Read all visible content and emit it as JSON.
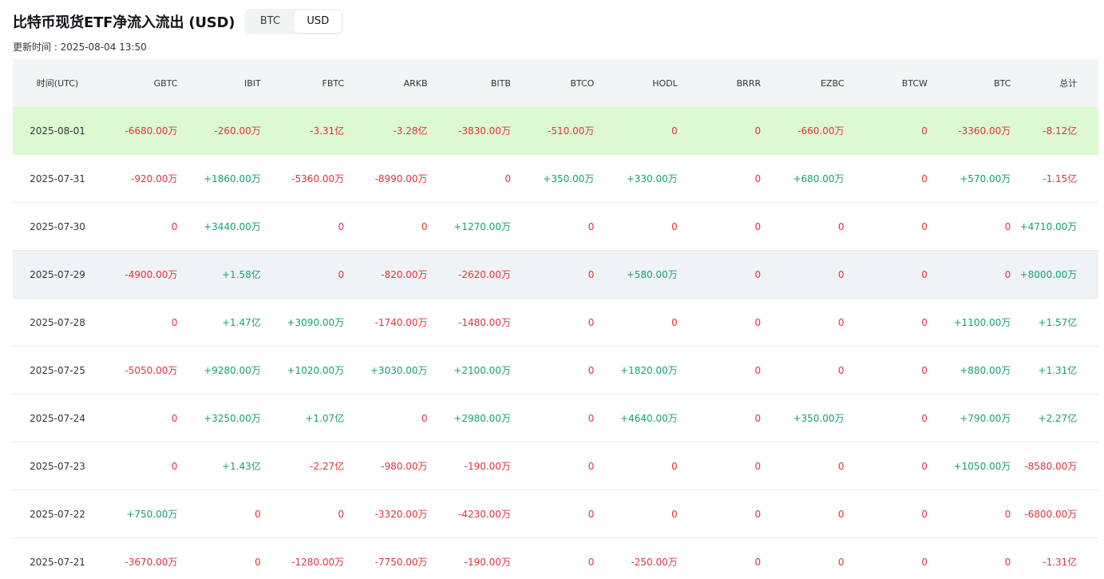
{
  "header": {
    "title": "比特币现货ETF净流入流出 (USD)",
    "toggle": [
      "BTC",
      "USD"
    ],
    "active_toggle": "USD",
    "updated": "更新时间 : 2025-08-04 13:50"
  },
  "colors": {
    "positive": "#14a173",
    "negative": "#e2323c",
    "highlight_row": "#dcf9d3",
    "hover_row": "#f0f3f6"
  },
  "table": {
    "columns": [
      "时间(UTC)",
      "GBTC",
      "IBIT",
      "FBTC",
      "ARKB",
      "BITB",
      "BTCO",
      "HODL",
      "BRRR",
      "EZBC",
      "BTCW",
      "BTC",
      "总计"
    ],
    "rows": [
      {
        "date": "2025-08-01",
        "values": [
          "-6680.00万",
          "-260.00万",
          "-3.31亿",
          "-3.28亿",
          "-3830.00万",
          "-510.00万",
          "0",
          "0",
          "-660.00万",
          "0",
          "-3360.00万",
          "-8.12亿"
        ]
      },
      {
        "date": "2025-07-31",
        "values": [
          "-920.00万",
          "+1860.00万",
          "-5360.00万",
          "-8990.00万",
          "0",
          "+350.00万",
          "+330.00万",
          "0",
          "+680.00万",
          "0",
          "+570.00万",
          "-1.15亿"
        ]
      },
      {
        "date": "2025-07-30",
        "values": [
          "0",
          "+3440.00万",
          "0",
          "0",
          "+1270.00万",
          "0",
          "0",
          "0",
          "0",
          "0",
          "0",
          "+4710.00万"
        ]
      },
      {
        "date": "2025-07-29",
        "values": [
          "-4900.00万",
          "+1.58亿",
          "0",
          "-820.00万",
          "-2620.00万",
          "0",
          "+580.00万",
          "0",
          "0",
          "0",
          "0",
          "+8000.00万"
        ]
      },
      {
        "date": "2025-07-28",
        "values": [
          "0",
          "+1.47亿",
          "+3090.00万",
          "-1740.00万",
          "-1480.00万",
          "0",
          "0",
          "0",
          "0",
          "0",
          "+1100.00万",
          "+1.57亿"
        ]
      },
      {
        "date": "2025-07-25",
        "values": [
          "-5050.00万",
          "+9280.00万",
          "+1020.00万",
          "+3030.00万",
          "+2100.00万",
          "0",
          "+1820.00万",
          "0",
          "0",
          "0",
          "+880.00万",
          "+1.31亿"
        ]
      },
      {
        "date": "2025-07-24",
        "values": [
          "0",
          "+3250.00万",
          "+1.07亿",
          "0",
          "+2980.00万",
          "0",
          "+4640.00万",
          "0",
          "+350.00万",
          "0",
          "+790.00万",
          "+2.27亿"
        ]
      },
      {
        "date": "2025-07-23",
        "values": [
          "0",
          "+1.43亿",
          "-2.27亿",
          "-980.00万",
          "-190.00万",
          "0",
          "0",
          "0",
          "0",
          "0",
          "+1050.00万",
          "-8580.00万"
        ]
      },
      {
        "date": "2025-07-22",
        "values": [
          "+750.00万",
          "0",
          "0",
          "-3320.00万",
          "-4230.00万",
          "0",
          "0",
          "0",
          "0",
          "0",
          "0",
          "-6800.00万"
        ]
      },
      {
        "date": "2025-07-21",
        "values": [
          "-3670.00万",
          "0",
          "-1280.00万",
          "-7750.00万",
          "-190.00万",
          "0",
          "-250.00万",
          "0",
          "0",
          "0",
          "0",
          "-1.31亿"
        ]
      }
    ]
  }
}
